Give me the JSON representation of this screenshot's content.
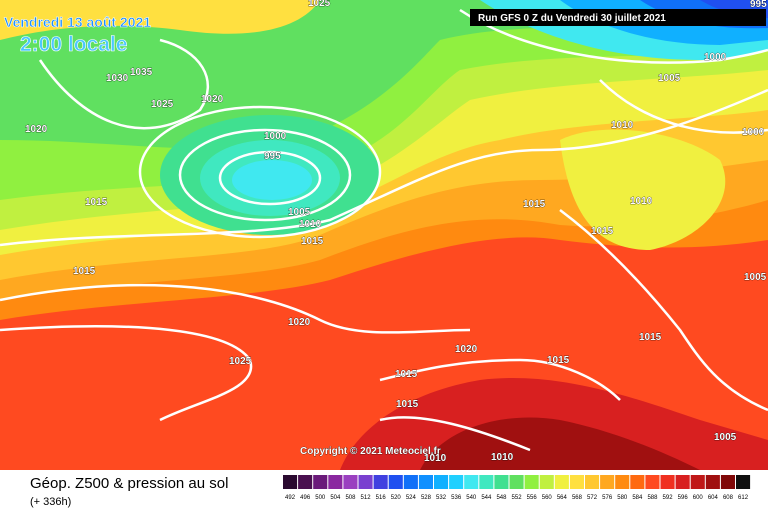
{
  "header": {
    "date": "Vendredi 13 août 2021",
    "time": "2:00 locale",
    "run": "Run GFS 0 Z du Vendredi 30 juillet 2021"
  },
  "isobar_labels": [
    "1025",
    "995",
    "1035",
    "1030",
    "1025",
    "1020",
    "1020",
    "1000",
    "995",
    "1015",
    "1005",
    "1010",
    "1015",
    "1015",
    "1020",
    "1025",
    "1000",
    "1005",
    "1010",
    "1000",
    "1015",
    "1010",
    "1015",
    "1005",
    "1015",
    "1020",
    "1015",
    "1015",
    "1015",
    "1010",
    "1010",
    "1005"
  ],
  "copyright": "Copyright © 2021 Meteociel.fr",
  "footer": {
    "title": "Géop. Z500 & pression au sol",
    "lead": "(+ 336h)"
  },
  "legend": {
    "steps": [
      {
        "label": "492",
        "color": "#2a0a30"
      },
      {
        "label": "496",
        "color": "#4a1050"
      },
      {
        "label": "500",
        "color": "#6a1a7a"
      },
      {
        "label": "504",
        "color": "#8a28a0"
      },
      {
        "label": "508",
        "color": "#9a40c0"
      },
      {
        "label": "512",
        "color": "#7a40d0"
      },
      {
        "label": "516",
        "color": "#4040e0"
      },
      {
        "label": "520",
        "color": "#2050f0"
      },
      {
        "label": "524",
        "color": "#1070f8"
      },
      {
        "label": "528",
        "color": "#1090ff"
      },
      {
        "label": "532",
        "color": "#10b0ff"
      },
      {
        "label": "536",
        "color": "#20d0ff"
      },
      {
        "label": "540",
        "color": "#40e8f0"
      },
      {
        "label": "544",
        "color": "#40e8c0"
      },
      {
        "label": "548",
        "color": "#40e090"
      },
      {
        "label": "552",
        "color": "#60e060"
      },
      {
        "label": "556",
        "color": "#90f040"
      },
      {
        "label": "560",
        "color": "#c0f040"
      },
      {
        "label": "564",
        "color": "#f0f040"
      },
      {
        "label": "568",
        "color": "#ffe040"
      },
      {
        "label": "572",
        "color": "#ffc830"
      },
      {
        "label": "576",
        "color": "#ffa820"
      },
      {
        "label": "580",
        "color": "#ff8a10"
      },
      {
        "label": "584",
        "color": "#ff6a10"
      },
      {
        "label": "588",
        "color": "#ff4a20"
      },
      {
        "label": "592",
        "color": "#f03020"
      },
      {
        "label": "596",
        "color": "#d82020"
      },
      {
        "label": "600",
        "color": "#c01818"
      },
      {
        "label": "604",
        "color": "#a01010"
      },
      {
        "label": "608",
        "color": "#800808"
      },
      {
        "label": "612",
        "color": "#101010"
      }
    ]
  }
}
